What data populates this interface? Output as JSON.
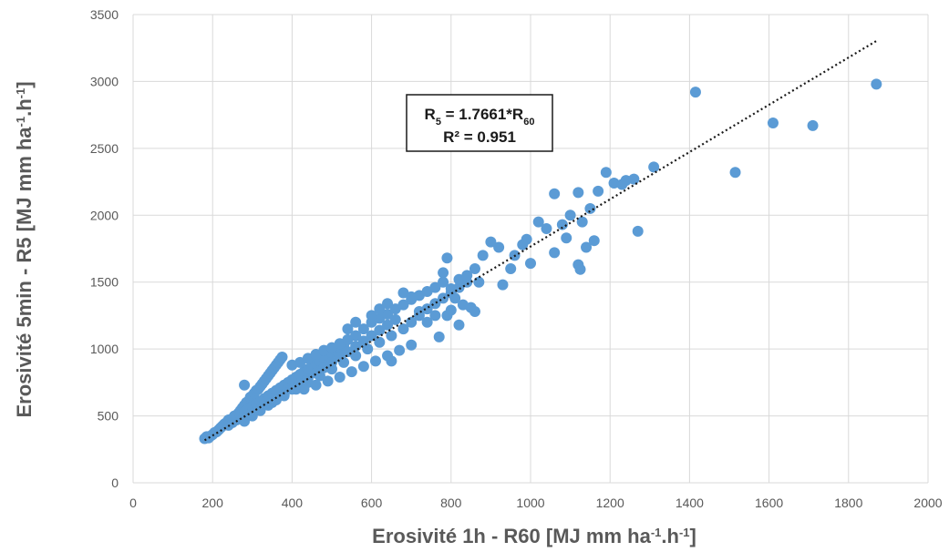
{
  "chart_data": {
    "type": "scatter",
    "title": "",
    "xlabel": {
      "base": "Erosivité 1h - R60 [MJ mm ha",
      "sup1": "-1",
      "mid": ".h",
      "sup2": "-1",
      "end": "]"
    },
    "ylabel": {
      "base": "Erosivité 5min - R5 [MJ mm ha",
      "sup1": "-1",
      "mid": ".h",
      "sup2": "-1",
      "end": "]"
    },
    "xlim": [
      0,
      2000
    ],
    "ylim": [
      0,
      3500
    ],
    "xticks": [
      0,
      200,
      400,
      600,
      800,
      1000,
      1200,
      1400,
      1600,
      1800,
      2000
    ],
    "yticks": [
      0,
      500,
      1000,
      1500,
      2000,
      2500,
      3000,
      3500
    ],
    "xtick_labels": [
      "0",
      "200",
      "400",
      "600",
      "800",
      "1000",
      "1200",
      "1400",
      "1600",
      "1800",
      "2000"
    ],
    "ytick_labels": [
      "0",
      "500",
      "1000",
      "1500",
      "2000",
      "2500",
      "3000",
      "3500"
    ],
    "grid": true,
    "legend": "none",
    "point_color": "#5b9bd5",
    "trendline": {
      "slope": 1.7661,
      "x_range": [
        180,
        1870
      ],
      "color": "#1a1a1a",
      "style": "dotted"
    },
    "annotation": {
      "line1": {
        "a": "R",
        "a_sub": "5",
        "b": " = 1.7661*R",
        "b_sub": "60"
      },
      "line2": "R² = 0.951"
    },
    "points": [
      [
        180,
        330
      ],
      [
        185,
        345
      ],
      [
        190,
        335
      ],
      [
        195,
        350
      ],
      [
        200,
        360
      ],
      [
        205,
        375
      ],
      [
        210,
        380
      ],
      [
        215,
        395
      ],
      [
        220,
        410
      ],
      [
        225,
        425
      ],
      [
        230,
        440
      ],
      [
        235,
        450
      ],
      [
        240,
        470
      ],
      [
        245,
        455
      ],
      [
        250,
        480
      ],
      [
        255,
        500
      ],
      [
        260,
        470
      ],
      [
        265,
        520
      ],
      [
        270,
        540
      ],
      [
        275,
        560
      ],
      [
        280,
        580
      ],
      [
        285,
        600
      ],
      [
        290,
        610
      ],
      [
        295,
        640
      ],
      [
        300,
        650
      ],
      [
        305,
        670
      ],
      [
        310,
        690
      ],
      [
        315,
        700
      ],
      [
        320,
        720
      ],
      [
        325,
        740
      ],
      [
        330,
        760
      ],
      [
        335,
        780
      ],
      [
        340,
        800
      ],
      [
        345,
        820
      ],
      [
        350,
        840
      ],
      [
        355,
        860
      ],
      [
        360,
        880
      ],
      [
        365,
        900
      ],
      [
        370,
        920
      ],
      [
        375,
        940
      ],
      [
        240,
        430
      ],
      [
        250,
        450
      ],
      [
        260,
        490
      ],
      [
        270,
        510
      ],
      [
        280,
        530
      ],
      [
        290,
        550
      ],
      [
        300,
        570
      ],
      [
        310,
        590
      ],
      [
        320,
        610
      ],
      [
        330,
        630
      ],
      [
        340,
        650
      ],
      [
        350,
        670
      ],
      [
        360,
        690
      ],
      [
        370,
        710
      ],
      [
        380,
        730
      ],
      [
        390,
        750
      ],
      [
        400,
        770
      ],
      [
        410,
        790
      ],
      [
        420,
        810
      ],
      [
        430,
        830
      ],
      [
        440,
        850
      ],
      [
        450,
        870
      ],
      [
        460,
        890
      ],
      [
        470,
        910
      ],
      [
        480,
        930
      ],
      [
        490,
        950
      ],
      [
        500,
        970
      ],
      [
        510,
        990
      ],
      [
        520,
        1010
      ],
      [
        530,
        1030
      ],
      [
        280,
        460
      ],
      [
        300,
        500
      ],
      [
        320,
        540
      ],
      [
        340,
        580
      ],
      [
        360,
        620
      ],
      [
        380,
        660
      ],
      [
        400,
        700
      ],
      [
        420,
        740
      ],
      [
        440,
        780
      ],
      [
        460,
        820
      ],
      [
        480,
        860
      ],
      [
        500,
        900
      ],
      [
        520,
        940
      ],
      [
        540,
        980
      ],
      [
        560,
        1020
      ],
      [
        580,
        1060
      ],
      [
        600,
        1100
      ],
      [
        620,
        1140
      ],
      [
        640,
        1180
      ],
      [
        660,
        1220
      ],
      [
        350,
        600
      ],
      [
        380,
        650
      ],
      [
        410,
        700
      ],
      [
        440,
        750
      ],
      [
        470,
        800
      ],
      [
        500,
        850
      ],
      [
        530,
        900
      ],
      [
        560,
        950
      ],
      [
        590,
        1000
      ],
      [
        620,
        1050
      ],
      [
        650,
        1100
      ],
      [
        680,
        1150
      ],
      [
        700,
        1200
      ],
      [
        720,
        1250
      ],
      [
        740,
        1300
      ],
      [
        760,
        1340
      ],
      [
        780,
        1380
      ],
      [
        800,
        1420
      ],
      [
        820,
        1460
      ],
      [
        840,
        1500
      ],
      [
        400,
        880
      ],
      [
        420,
        900
      ],
      [
        440,
        930
      ],
      [
        460,
        960
      ],
      [
        480,
        990
      ],
      [
        500,
        1010
      ],
      [
        520,
        1040
      ],
      [
        540,
        1070
      ],
      [
        560,
        1100
      ],
      [
        580,
        1150
      ],
      [
        600,
        1200
      ],
      [
        620,
        1230
      ],
      [
        640,
        1260
      ],
      [
        660,
        1300
      ],
      [
        680,
        1330
      ],
      [
        700,
        1370
      ],
      [
        720,
        1400
      ],
      [
        740,
        1430
      ],
      [
        760,
        1460
      ],
      [
        780,
        1500
      ],
      [
        430,
        700
      ],
      [
        460,
        730
      ],
      [
        490,
        760
      ],
      [
        520,
        790
      ],
      [
        550,
        830
      ],
      [
        580,
        870
      ],
      [
        610,
        910
      ],
      [
        640,
        950
      ],
      [
        670,
        990
      ],
      [
        700,
        1030
      ],
      [
        280,
        730
      ],
      [
        650,
        910
      ],
      [
        770,
        1090
      ],
      [
        820,
        1180
      ],
      [
        790,
        1250
      ],
      [
        800,
        1290
      ],
      [
        810,
        1380
      ],
      [
        830,
        1330
      ],
      [
        850,
        1310
      ],
      [
        860,
        1280
      ],
      [
        780,
        1570
      ],
      [
        790,
        1680
      ],
      [
        800,
        1450
      ],
      [
        820,
        1520
      ],
      [
        840,
        1550
      ],
      [
        860,
        1600
      ],
      [
        870,
        1500
      ],
      [
        880,
        1700
      ],
      [
        900,
        1800
      ],
      [
        920,
        1760
      ],
      [
        930,
        1480
      ],
      [
        950,
        1600
      ],
      [
        960,
        1700
      ],
      [
        980,
        1780
      ],
      [
        990,
        1820
      ],
      [
        1000,
        1640
      ],
      [
        1020,
        1950
      ],
      [
        1040,
        1900
      ],
      [
        1060,
        2160
      ],
      [
        1080,
        1930
      ],
      [
        1090,
        1830
      ],
      [
        1100,
        2000
      ],
      [
        1120,
        1630
      ],
      [
        1130,
        1950
      ],
      [
        1140,
        1760
      ],
      [
        1150,
        2050
      ],
      [
        1160,
        1810
      ],
      [
        1170,
        2180
      ],
      [
        1190,
        2320
      ],
      [
        1210,
        2240
      ],
      [
        1240,
        2260
      ],
      [
        1260,
        2270
      ],
      [
        1270,
        1880
      ],
      [
        1310,
        2360
      ],
      [
        1060,
        1720
      ],
      [
        1120,
        2170
      ],
      [
        1125,
        1595
      ],
      [
        1230,
        2230
      ],
      [
        1415,
        2920
      ],
      [
        1515,
        2320
      ],
      [
        1610,
        2690
      ],
      [
        1710,
        2670
      ],
      [
        1870,
        2980
      ],
      [
        560,
        1200
      ],
      [
        600,
        1250
      ],
      [
        620,
        1300
      ],
      [
        640,
        1340
      ],
      [
        680,
        1420
      ],
      [
        700,
        1390
      ],
      [
        720,
        1280
      ],
      [
        740,
        1200
      ],
      [
        760,
        1250
      ],
      [
        540,
        1150
      ]
    ]
  }
}
